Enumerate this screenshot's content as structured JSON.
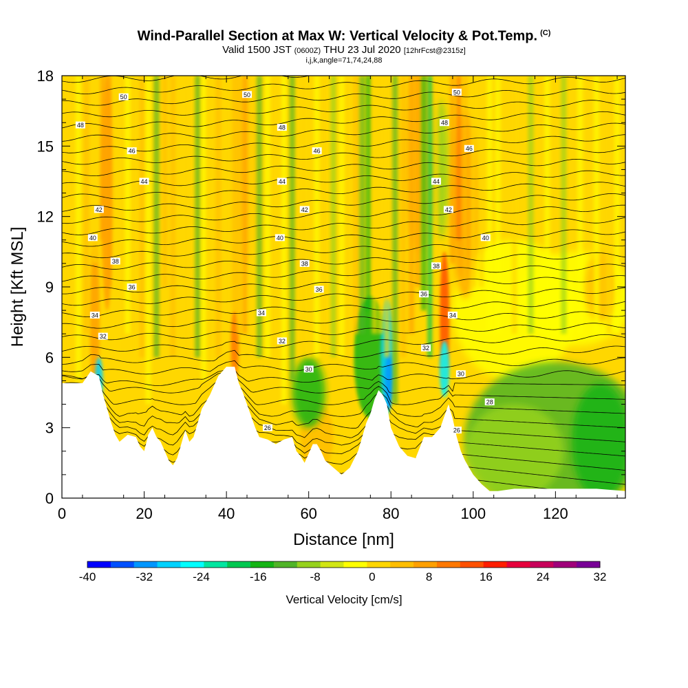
{
  "chart_data": {
    "type": "heatmap",
    "title": "Wind-Parallel Section at Max W: Vertical Velocity & Pot.Temp.",
    "title_mark": "(C)",
    "subtitle_main": "Valid 1500 JST",
    "subtitle_utc": "(0600Z)",
    "subtitle_date": "THU 23 Jul 2020",
    "subtitle_fcst": "[12hrFcst@2315z]",
    "params": "i,j,k,angle=71,74,24,88",
    "xlabel": "Distance [nm]",
    "ylabel": "Height [Kft MSL]",
    "xlim": [
      0,
      137
    ],
    "ylim": [
      0,
      18
    ],
    "x_ticks": [
      "0",
      "20",
      "40",
      "60",
      "80",
      "100",
      "120"
    ],
    "y_ticks": [
      "0",
      "3",
      "6",
      "9",
      "12",
      "15",
      "18"
    ],
    "colorbar": {
      "label": "Vertical Velocity [cm/s]",
      "range": [
        -40,
        32
      ],
      "step": 4,
      "tick_labels": [
        "-40",
        "-32",
        "-24",
        "-16",
        "-8",
        "0",
        "8",
        "16",
        "24",
        "32"
      ],
      "colors": [
        "#0000ff",
        "#0050ff",
        "#0096ff",
        "#00d2ff",
        "#00ffff",
        "#00e6a0",
        "#00c850",
        "#14b414",
        "#50b428",
        "#96d21e",
        "#d2e614",
        "#ffff00",
        "#ffd700",
        "#ffbe00",
        "#ffa000",
        "#ff7800",
        "#ff5000",
        "#ff1e00",
        "#e6003c",
        "#c8005a",
        "#a0007a",
        "#780096"
      ]
    },
    "theta_contour_labels": [
      {
        "value": "50",
        "x": 15,
        "y": 17.1
      },
      {
        "value": "50",
        "x": 45,
        "y": 17.2
      },
      {
        "value": "50",
        "x": 96,
        "y": 17.3
      },
      {
        "value": "48",
        "x": 4.5,
        "y": 15.9
      },
      {
        "value": "48",
        "x": 53.5,
        "y": 15.8
      },
      {
        "value": "48",
        "x": 93,
        "y": 16.0
      },
      {
        "value": "46",
        "x": 17,
        "y": 14.8
      },
      {
        "value": "46",
        "x": 62,
        "y": 14.8
      },
      {
        "value": "46",
        "x": 99,
        "y": 14.9
      },
      {
        "value": "44",
        "x": 20,
        "y": 13.5
      },
      {
        "value": "44",
        "x": 53.5,
        "y": 13.5
      },
      {
        "value": "44",
        "x": 91,
        "y": 13.5
      },
      {
        "value": "42",
        "x": 9,
        "y": 12.3
      },
      {
        "value": "42",
        "x": 59,
        "y": 12.3
      },
      {
        "value": "42",
        "x": 94,
        "y": 12.3
      },
      {
        "value": "40",
        "x": 7.5,
        "y": 11.1
      },
      {
        "value": "40",
        "x": 53,
        "y": 11.1
      },
      {
        "value": "40",
        "x": 103,
        "y": 11.1
      },
      {
        "value": "38",
        "x": 13,
        "y": 10.1
      },
      {
        "value": "38",
        "x": 59,
        "y": 10.0
      },
      {
        "value": "38",
        "x": 91,
        "y": 9.9
      },
      {
        "value": "36",
        "x": 17,
        "y": 9.0
      },
      {
        "value": "36",
        "x": 62.5,
        "y": 8.9
      },
      {
        "value": "36",
        "x": 88,
        "y": 8.7
      },
      {
        "value": "34",
        "x": 8,
        "y": 7.8
      },
      {
        "value": "34",
        "x": 48.5,
        "y": 7.9
      },
      {
        "value": "34",
        "x": 95,
        "y": 7.8
      },
      {
        "value": "32",
        "x": 10,
        "y": 6.9
      },
      {
        "value": "32",
        "x": 53.5,
        "y": 6.7
      },
      {
        "value": "32",
        "x": 88.5,
        "y": 6.4
      },
      {
        "value": "30",
        "x": 60,
        "y": 5.5
      },
      {
        "value": "30",
        "x": 97,
        "y": 5.3
      },
      {
        "value": "28",
        "x": 104,
        "y": 4.1
      },
      {
        "value": "26",
        "x": 50,
        "y": 3.0
      },
      {
        "value": "26",
        "x": 96,
        "y": 2.9
      }
    ]
  }
}
